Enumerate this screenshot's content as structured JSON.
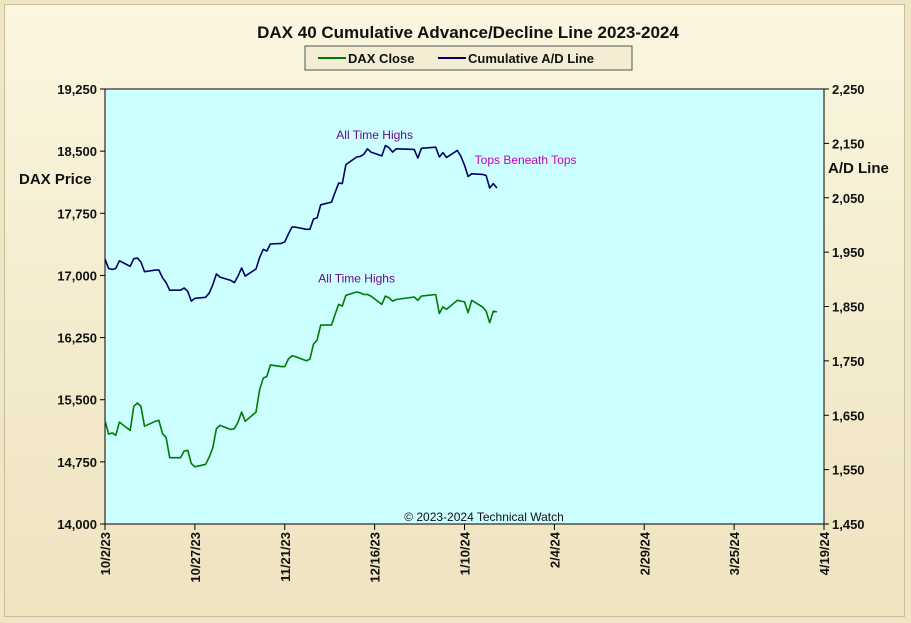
{
  "chart_data": {
    "type": "line",
    "title": "DAX 40 Cumulative Advance/Decline Line 2023-2024",
    "y_left_label": "DAX Price",
    "y_right_label": "A/D Line",
    "y_left_range": [
      14000,
      19250
    ],
    "y_right_range": [
      1450,
      2250
    ],
    "y_left_ticks": [
      "14,000",
      "14,750",
      "15,500",
      "16,250",
      "17,000",
      "17,750",
      "18,500",
      "19,250"
    ],
    "y_right_ticks": [
      "1,450",
      "1,550",
      "1,650",
      "1,750",
      "1,850",
      "1,950",
      "2,050",
      "2,150",
      "2,250"
    ],
    "x_range": [
      "2023-10-02",
      "2024-04-19"
    ],
    "x_ticks": [
      {
        "date": "2023-10-02",
        "label": "10/2/23"
      },
      {
        "date": "2023-10-27",
        "label": "10/27/23"
      },
      {
        "date": "2023-11-21",
        "label": "11/21/23"
      },
      {
        "date": "2023-12-16",
        "label": "12/16/23"
      },
      {
        "date": "2024-01-10",
        "label": "1/10/24"
      },
      {
        "date": "2024-02-04",
        "label": "2/4/24"
      },
      {
        "date": "2024-02-29",
        "label": "2/29/24"
      },
      {
        "date": "2024-03-25",
        "label": "3/25/24"
      },
      {
        "date": "2024-04-19",
        "label": "4/19/24"
      }
    ],
    "legend_placement": "top-center",
    "grid": false,
    "series": [
      {
        "name": "DAX Close",
        "axis": "left",
        "color": "#007a00",
        "points": [
          [
            "2023-10-02",
            15250
          ],
          [
            "2023-10-03",
            15085
          ],
          [
            "2023-10-04",
            15100
          ],
          [
            "2023-10-05",
            15070
          ],
          [
            "2023-10-06",
            15230
          ],
          [
            "2023-10-09",
            15130
          ],
          [
            "2023-10-10",
            15420
          ],
          [
            "2023-10-11",
            15460
          ],
          [
            "2023-10-12",
            15420
          ],
          [
            "2023-10-13",
            15180
          ],
          [
            "2023-10-16",
            15240
          ],
          [
            "2023-10-17",
            15250
          ],
          [
            "2023-10-18",
            15090
          ],
          [
            "2023-10-19",
            15045
          ],
          [
            "2023-10-20",
            14800
          ],
          [
            "2023-10-23",
            14800
          ],
          [
            "2023-10-24",
            14880
          ],
          [
            "2023-10-25",
            14890
          ],
          [
            "2023-10-26",
            14730
          ],
          [
            "2023-10-27",
            14690
          ],
          [
            "2023-10-30",
            14720
          ],
          [
            "2023-10-31",
            14810
          ],
          [
            "2023-11-01",
            14920
          ],
          [
            "2023-11-02",
            15150
          ],
          [
            "2023-11-03",
            15190
          ],
          [
            "2023-11-06",
            15140
          ],
          [
            "2023-11-07",
            15150
          ],
          [
            "2023-11-08",
            15230
          ],
          [
            "2023-11-09",
            15350
          ],
          [
            "2023-11-10",
            15240
          ],
          [
            "2023-11-13",
            15350
          ],
          [
            "2023-11-14",
            15620
          ],
          [
            "2023-11-15",
            15760
          ],
          [
            "2023-11-16",
            15780
          ],
          [
            "2023-11-17",
            15920
          ],
          [
            "2023-11-20",
            15900
          ],
          [
            "2023-11-21",
            15900
          ],
          [
            "2023-11-22",
            15990
          ],
          [
            "2023-11-23",
            16030
          ],
          [
            "2023-11-24",
            16020
          ],
          [
            "2023-11-27",
            15970
          ],
          [
            "2023-11-28",
            15990
          ],
          [
            "2023-11-29",
            16170
          ],
          [
            "2023-11-30",
            16220
          ],
          [
            "2023-12-01",
            16400
          ],
          [
            "2023-12-04",
            16400
          ],
          [
            "2023-12-05",
            16530
          ],
          [
            "2023-12-06",
            16650
          ],
          [
            "2023-12-07",
            16630
          ],
          [
            "2023-12-08",
            16760
          ],
          [
            "2023-12-11",
            16800
          ],
          [
            "2023-12-12",
            16790
          ],
          [
            "2023-12-13",
            16770
          ],
          [
            "2023-12-14",
            16770
          ],
          [
            "2023-12-15",
            16750
          ],
          [
            "2023-12-18",
            16650
          ],
          [
            "2023-12-19",
            16750
          ],
          [
            "2023-12-20",
            16730
          ],
          [
            "2023-12-21",
            16690
          ],
          [
            "2023-12-22",
            16710
          ],
          [
            "2023-12-27",
            16740
          ],
          [
            "2023-12-28",
            16700
          ],
          [
            "2023-12-29",
            16750
          ],
          [
            "2024-01-02",
            16770
          ],
          [
            "2024-01-03",
            16540
          ],
          [
            "2024-01-04",
            16620
          ],
          [
            "2024-01-05",
            16590
          ],
          [
            "2024-01-08",
            16700
          ],
          [
            "2024-01-09",
            16690
          ],
          [
            "2024-01-10",
            16680
          ],
          [
            "2024-01-11",
            16550
          ],
          [
            "2024-01-12",
            16700
          ],
          [
            "2024-01-15",
            16620
          ],
          [
            "2024-01-16",
            16570
          ],
          [
            "2024-01-17",
            16430
          ],
          [
            "2024-01-18",
            16570
          ],
          [
            "2024-01-19",
            16560
          ]
        ]
      },
      {
        "name": "Cumulative A/D Line",
        "axis": "right",
        "color": "#000066",
        "points": [
          [
            "2023-10-02",
            1937
          ],
          [
            "2023-10-03",
            1920
          ],
          [
            "2023-10-04",
            1918
          ],
          [
            "2023-10-05",
            1920
          ],
          [
            "2023-10-06",
            1934
          ],
          [
            "2023-10-09",
            1924
          ],
          [
            "2023-10-10",
            1938
          ],
          [
            "2023-10-11",
            1939
          ],
          [
            "2023-10-12",
            1932
          ],
          [
            "2023-10-13",
            1914
          ],
          [
            "2023-10-16",
            1917
          ],
          [
            "2023-10-17",
            1917
          ],
          [
            "2023-10-18",
            1903
          ],
          [
            "2023-10-19",
            1894
          ],
          [
            "2023-10-20",
            1880
          ],
          [
            "2023-10-23",
            1880
          ],
          [
            "2023-10-24",
            1884
          ],
          [
            "2023-10-25",
            1878
          ],
          [
            "2023-10-26",
            1860
          ],
          [
            "2023-10-27",
            1865
          ],
          [
            "2023-10-30",
            1867
          ],
          [
            "2023-10-31",
            1875
          ],
          [
            "2023-11-01",
            1890
          ],
          [
            "2023-11-02",
            1910
          ],
          [
            "2023-11-03",
            1904
          ],
          [
            "2023-11-06",
            1898
          ],
          [
            "2023-11-07",
            1894
          ],
          [
            "2023-11-08",
            1906
          ],
          [
            "2023-11-09",
            1921
          ],
          [
            "2023-11-10",
            1906
          ],
          [
            "2023-11-13",
            1919
          ],
          [
            "2023-11-14",
            1940
          ],
          [
            "2023-11-15",
            1955
          ],
          [
            "2023-11-16",
            1952
          ],
          [
            "2023-11-17",
            1965
          ],
          [
            "2023-11-20",
            1966
          ],
          [
            "2023-11-21",
            1969
          ],
          [
            "2023-11-22",
            1983
          ],
          [
            "2023-11-23",
            1996
          ],
          [
            "2023-11-24",
            1996
          ],
          [
            "2023-11-27",
            1992
          ],
          [
            "2023-11-28",
            1992
          ],
          [
            "2023-11-29",
            2011
          ],
          [
            "2023-11-30",
            2013
          ],
          [
            "2023-12-01",
            2037
          ],
          [
            "2023-12-04",
            2042
          ],
          [
            "2023-12-05",
            2060
          ],
          [
            "2023-12-06",
            2077
          ],
          [
            "2023-12-07",
            2076
          ],
          [
            "2023-12-08",
            2111
          ],
          [
            "2023-12-11",
            2125
          ],
          [
            "2023-12-12",
            2126
          ],
          [
            "2023-12-13",
            2130
          ],
          [
            "2023-12-14",
            2140
          ],
          [
            "2023-12-15",
            2134
          ],
          [
            "2023-12-18",
            2127
          ],
          [
            "2023-12-19",
            2146
          ],
          [
            "2023-12-20",
            2142
          ],
          [
            "2023-12-21",
            2134
          ],
          [
            "2023-12-22",
            2140
          ],
          [
            "2023-12-27",
            2139
          ],
          [
            "2023-12-28",
            2123
          ],
          [
            "2023-12-29",
            2141
          ],
          [
            "2024-01-02",
            2143
          ],
          [
            "2024-01-03",
            2125
          ],
          [
            "2024-01-04",
            2133
          ],
          [
            "2024-01-05",
            2124
          ],
          [
            "2024-01-08",
            2137
          ],
          [
            "2024-01-09",
            2126
          ],
          [
            "2024-01-10",
            2110
          ],
          [
            "2024-01-11",
            2089
          ],
          [
            "2024-01-12",
            2094
          ],
          [
            "2024-01-15",
            2093
          ],
          [
            "2024-01-16",
            2091
          ],
          [
            "2024-01-17",
            2068
          ],
          [
            "2024-01-18",
            2076
          ],
          [
            "2024-01-19",
            2068
          ]
        ]
      }
    ],
    "annotations": [
      {
        "text": "All Time Highs",
        "date": "2023-12-16",
        "axis": "right",
        "value": 2158,
        "color": "#6a0a8a"
      },
      {
        "text": "Tops Beneath Tops",
        "date": "2024-01-27",
        "axis": "right",
        "value": 2112,
        "color": "#c400c4"
      },
      {
        "text": "All Time Highs",
        "date": "2023-12-11",
        "axis": "left",
        "value": 16915,
        "color": "#6a0a8a"
      }
    ],
    "copyright": "© 2023-2024  Technical  Watch",
    "plot_background": "#ccffff"
  }
}
